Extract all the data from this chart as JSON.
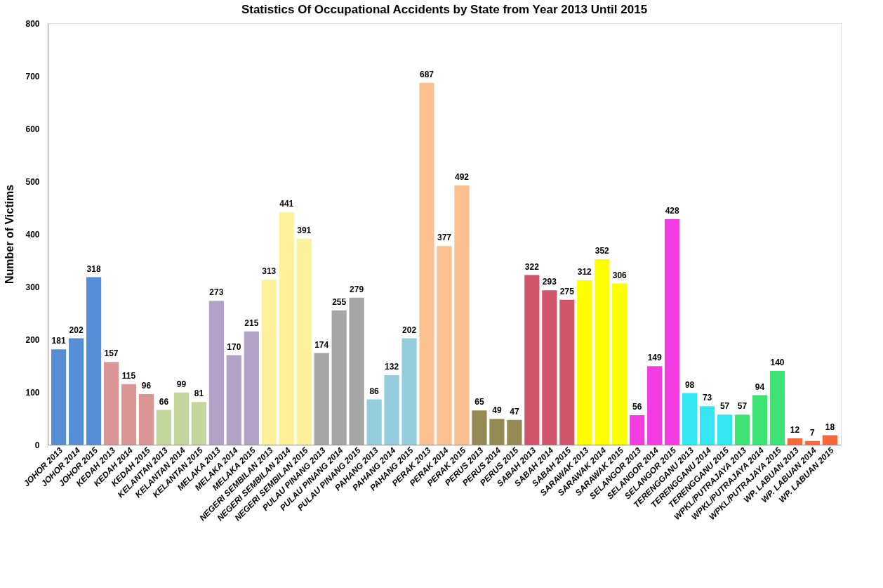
{
  "chart_data": {
    "type": "bar",
    "title": "Statistics Of Occupational Accidents by State from Year 2013 Until 2015",
    "ylabel": "Number of Victims",
    "categories": [
      "JOHOR 2013",
      "JOHOR 2014",
      "JOHOR 2015",
      "KEDAH 2013",
      "KEDAH 2014",
      "KEDAH 2015",
      "KELANTAN 2013",
      "KELANTAN 2014",
      "KELANTAN 2015",
      "MELAKA 2013",
      "MELAKA 2014",
      "MELAKA 2015",
      "NEGERI SEMBILAN 2013",
      "NEGERI SEMBILAN 2014",
      "NEGERI SEMBILAN 2015",
      "PULAU PINANG 2013",
      "PULAU PINANG 2014",
      "PULAU PINANG 2015",
      "PAHANG 2013",
      "PAHANG 2014",
      "PAHANG 2015",
      "PERAK 2013",
      "PERAK 2014",
      "PERAK 2015",
      "PERUS 2013",
      "PERUS 2014",
      "PERUS 2015",
      "SABAH 2013",
      "SABAH 2014",
      "SABAH 2015",
      "SARAWAK 2013",
      "SARAWAK 2014",
      "SARAWAK 2015",
      "SELANGOR 2013",
      "SELANGOR 2014",
      "SELANGOR 2015",
      "TERENGGANU 2013",
      "TERENGGANU 2014",
      "TERENGGANU 2015",
      "WPKL/PUTRAJAYA 2013",
      "WPKL/PUTRAJAYA 2014",
      "WPKL/PUTRAJAYA 2015",
      "WP. LABUAN 2013",
      "WP. LABUAN 2014",
      "WP. LABUAN 2015"
    ],
    "values": [
      181,
      202,
      318,
      157,
      115,
      96,
      66,
      99,
      81,
      273,
      170,
      215,
      313,
      441,
      391,
      174,
      255,
      279,
      86,
      132,
      202,
      687,
      377,
      492,
      65,
      49,
      47,
      322,
      293,
      275,
      312,
      352,
      306,
      56,
      149,
      428,
      98,
      73,
      57,
      57,
      94,
      140,
      12,
      7,
      18
    ],
    "colors": [
      "#558ed5",
      "#558ed5",
      "#558ed5",
      "#d99694",
      "#d99694",
      "#d99694",
      "#c3d69b",
      "#c3d69b",
      "#c3d69b",
      "#b3a2c7",
      "#b3a2c7",
      "#b3a2c7",
      "#fdf29b",
      "#fdf29b",
      "#fdf29b",
      "#a6a6a6",
      "#a6a6a6",
      "#a6a6a6",
      "#93cddd",
      "#93cddd",
      "#93cddd",
      "#fac090",
      "#fac090",
      "#fac090",
      "#948a54",
      "#948a54",
      "#948a54",
      "#d0556a",
      "#d0556a",
      "#d0556a",
      "#ffff00",
      "#ffff00",
      "#ffff00",
      "#f03ce0",
      "#f03ce0",
      "#f03ce0",
      "#36e5f2",
      "#36e5f2",
      "#36e5f2",
      "#3de373",
      "#3de373",
      "#3de373",
      "#f5693a",
      "#f5693a",
      "#f5693a"
    ],
    "ylim": [
      0,
      800
    ],
    "yticks": [
      0,
      100,
      200,
      300,
      400,
      500,
      600,
      700,
      800
    ],
    "grid": false,
    "legend": false,
    "data_labels": true
  }
}
